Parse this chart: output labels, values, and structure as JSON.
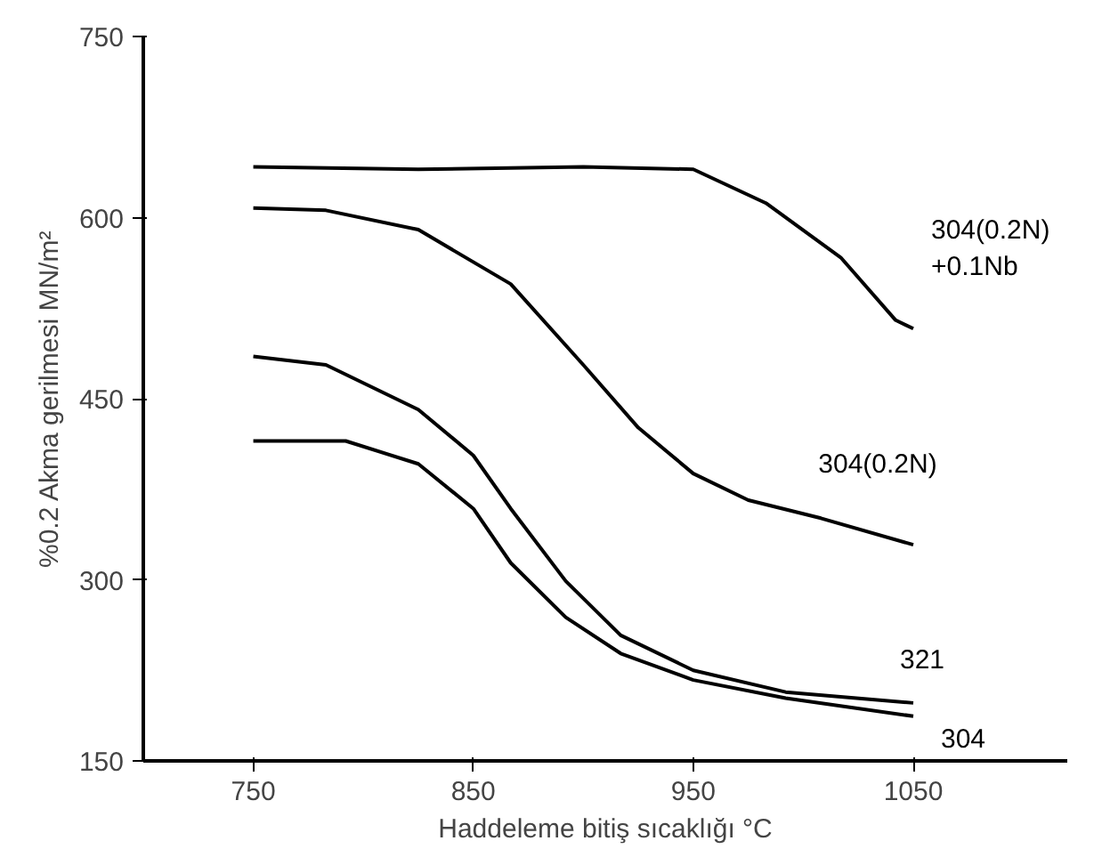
{
  "chart_data": {
    "type": "line",
    "xlabel": "Haddeleme bitiş sıcaklığı °C",
    "ylabel": "%0.2 Akma gerilmesi MN/m²",
    "xlim": [
      700,
      1120
    ],
    "ylim": [
      150,
      750
    ],
    "xticks": [
      750,
      850,
      950,
      1050
    ],
    "yticks": [
      150,
      300,
      450,
      600,
      750
    ],
    "grid": false,
    "legend": false,
    "marker": "none",
    "line_style": "solid",
    "series": [
      {
        "name": "304(0.2N)\n+0.1Nb",
        "color": "#000000",
        "x": [
          750,
          825,
          900,
          950,
          983,
          1017,
          1042,
          1050
        ],
        "values": [
          642,
          640,
          642,
          640,
          612,
          567,
          515,
          508
        ]
      },
      {
        "name": "304(0.2N)",
        "color": "#000000",
        "x": [
          750,
          783,
          825,
          867,
          900,
          925,
          950,
          975,
          1008,
          1050
        ],
        "values": [
          608,
          606,
          590,
          545,
          478,
          426,
          388,
          366,
          351,
          329
        ]
      },
      {
        "name": "321",
        "color": "#000000",
        "x": [
          750,
          783,
          825,
          850,
          867,
          892,
          917,
          950,
          992,
          1050
        ],
        "values": [
          485,
          478,
          441,
          403,
          359,
          299,
          254,
          225,
          207,
          198
        ]
      },
      {
        "name": "304",
        "color": "#000000",
        "x": [
          750,
          792,
          825,
          850,
          867,
          892,
          917,
          950,
          992,
          1050
        ],
        "values": [
          415,
          415,
          396,
          359,
          314,
          269,
          239,
          217,
          202,
          187
        ]
      }
    ]
  }
}
